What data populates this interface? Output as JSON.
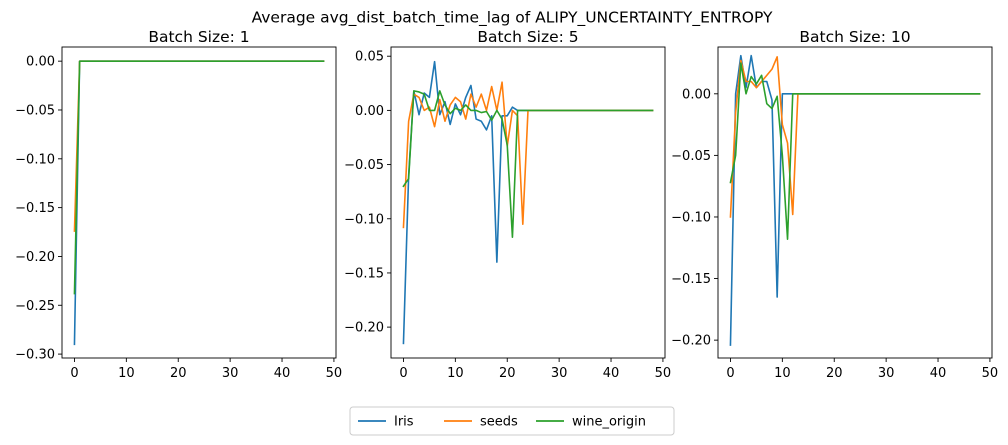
{
  "chart_data": {
    "suptitle": "Average avg_dist_batch_time_lag of ALIPY_UNCERTAINTY_ENTROPY",
    "legend": {
      "placement": "bottom-center",
      "entries": [
        "Iris",
        "seeds",
        "wine_origin"
      ]
    },
    "colors": {
      "Iris": "#1f77b4",
      "seeds": "#ff7f0e",
      "wine_origin": "#2ca02c"
    },
    "panels": [
      {
        "type": "line",
        "title": "Batch Size: 1",
        "xlim": [
          -2.4,
          50.4
        ],
        "ylim": [
          -0.304,
          0.0145
        ],
        "xticks": [
          0,
          10,
          20,
          30,
          40,
          50
        ],
        "xtick_labels": [
          "0",
          "10",
          "20",
          "30",
          "40",
          "50"
        ],
        "yticks": [
          0.0,
          -0.05,
          -0.1,
          -0.15,
          -0.2,
          -0.25,
          -0.3
        ],
        "ytick_labels": [
          "0.00",
          "−0.05",
          "−0.10",
          "−0.15",
          "−0.20",
          "−0.25",
          "−0.30"
        ],
        "series": [
          {
            "name": "Iris",
            "x": [
              0,
              1,
              48
            ],
            "y": [
              -0.29,
              0.0,
              0.0
            ]
          },
          {
            "name": "seeds",
            "x": [
              0,
              1,
              48
            ],
            "y": [
              -0.174,
              0.0,
              0.0
            ]
          },
          {
            "name": "wine_origin",
            "x": [
              0,
              1,
              48
            ],
            "y": [
              -0.238,
              0.0,
              0.0
            ]
          }
        ]
      },
      {
        "type": "line",
        "title": "Batch Size: 5",
        "xlim": [
          -2.4,
          50.4
        ],
        "ylim": [
          -0.2285,
          0.0585
        ],
        "xticks": [
          0,
          10,
          20,
          30,
          40,
          50
        ],
        "xtick_labels": [
          "0",
          "10",
          "20",
          "30",
          "40",
          "50"
        ],
        "yticks": [
          0.05,
          0.0,
          -0.05,
          -0.1,
          -0.15,
          -0.2
        ],
        "ytick_labels": [
          "0.05",
          "0.00",
          "−0.05",
          "−0.10",
          "−0.15",
          "−0.20"
        ],
        "series": [
          {
            "name": "Iris",
            "x": [
              0,
              1,
              2,
              3,
              4,
              5,
              6,
              7,
              8,
              9,
              10,
              11,
              12,
              13,
              14,
              15,
              16,
              17,
              18,
              19,
              20,
              21,
              22,
              48
            ],
            "y": [
              -0.215,
              -0.06,
              0.018,
              -0.004,
              0.016,
              0.012,
              0.045,
              -0.004,
              0.008,
              -0.013,
              0.006,
              -0.004,
              0.012,
              0.023,
              -0.008,
              -0.01,
              -0.018,
              -0.005,
              -0.14,
              -0.005,
              -0.005,
              0.003,
              0.0,
              0.0
            ]
          },
          {
            "name": "seeds",
            "x": [
              0,
              1,
              2,
              3,
              4,
              5,
              6,
              7,
              8,
              9,
              10,
              11,
              12,
              13,
              14,
              15,
              16,
              17,
              18,
              19,
              20,
              21,
              22,
              23,
              24,
              48
            ],
            "y": [
              -0.108,
              -0.01,
              0.015,
              0.012,
              0.0,
              0.003,
              -0.015,
              0.01,
              -0.01,
              0.005,
              0.012,
              0.008,
              -0.008,
              0.015,
              0.003,
              0.015,
              0.0,
              0.022,
              0.0,
              0.026,
              -0.033,
              0.0,
              -0.005,
              -0.105,
              0.0,
              0.0
            ]
          },
          {
            "name": "wine_origin",
            "x": [
              0,
              1,
              2,
              3,
              4,
              5,
              6,
              7,
              8,
              9,
              10,
              11,
              12,
              13,
              14,
              15,
              16,
              17,
              18,
              19,
              20,
              21,
              22,
              48
            ],
            "y": [
              -0.07,
              -0.063,
              0.018,
              0.017,
              0.015,
              0.0,
              0.0,
              0.018,
              0.005,
              -0.003,
              0.002,
              0.0,
              0.005,
              0.0,
              0.0,
              -0.002,
              -0.001,
              -0.009,
              0.0,
              -0.008,
              -0.032,
              -0.117,
              0.0,
              0.0
            ]
          }
        ]
      },
      {
        "type": "line",
        "title": "Batch Size: 10",
        "xlim": [
          -2.4,
          50.4
        ],
        "ylim": [
          -0.2145,
          0.038
        ],
        "xticks": [
          0,
          10,
          20,
          30,
          40,
          50
        ],
        "xtick_labels": [
          "0",
          "10",
          "20",
          "30",
          "40",
          "50"
        ],
        "yticks": [
          0.0,
          -0.05,
          -0.1,
          -0.15,
          -0.2
        ],
        "ytick_labels": [
          "0.00",
          "−0.05",
          "−0.10",
          "−0.15",
          "−0.20"
        ],
        "series": [
          {
            "name": "Iris",
            "x": [
              0,
              1,
              2,
              3,
              4,
              5,
              6,
              7,
              8,
              9,
              10,
              11,
              48
            ],
            "y": [
              -0.204,
              0.0,
              0.031,
              0.005,
              0.031,
              0.005,
              0.01,
              0.01,
              -0.005,
              -0.165,
              0.0,
              0.0,
              0.0
            ]
          },
          {
            "name": "seeds",
            "x": [
              0,
              1,
              2,
              3,
              4,
              5,
              6,
              7,
              8,
              9,
              10,
              11,
              12,
              13,
              48
            ],
            "y": [
              -0.1,
              -0.015,
              0.027,
              0.01,
              0.01,
              0.005,
              0.01,
              0.015,
              0.02,
              0.03,
              -0.025,
              -0.04,
              -0.098,
              0.0,
              0.0
            ]
          },
          {
            "name": "wine_origin",
            "x": [
              0,
              1,
              2,
              3,
              4,
              5,
              6,
              7,
              8,
              9,
              10,
              11,
              12,
              48
            ],
            "y": [
              -0.072,
              -0.05,
              0.025,
              0.0,
              0.014,
              0.008,
              0.015,
              -0.008,
              -0.012,
              -0.002,
              -0.05,
              -0.118,
              0.0,
              0.0
            ]
          }
        ]
      }
    ]
  }
}
